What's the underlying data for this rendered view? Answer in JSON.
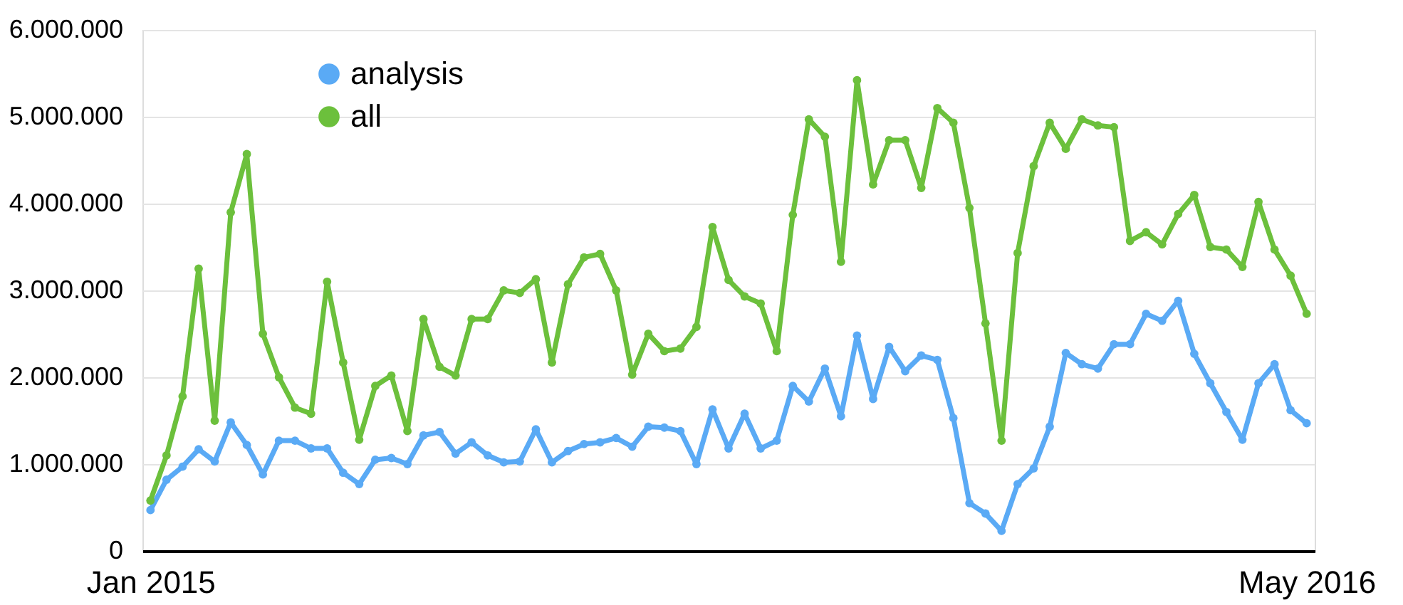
{
  "chart_data": {
    "type": "line",
    "categories": [
      "Jan 2015",
      null,
      null,
      null,
      null,
      null,
      null,
      null,
      null,
      null,
      null,
      null,
      null,
      null,
      null,
      null,
      null,
      null,
      null,
      null,
      null,
      null,
      null,
      null,
      null,
      null,
      null,
      null,
      null,
      null,
      null,
      null,
      null,
      null,
      null,
      null,
      null,
      null,
      null,
      null,
      null,
      null,
      null,
      null,
      null,
      null,
      null,
      null,
      null,
      null,
      null,
      null,
      null,
      null,
      null,
      null,
      null,
      null,
      null,
      null,
      null,
      null,
      null,
      null,
      null,
      null,
      null,
      null,
      null,
      null,
      null,
      null,
      "May 2016"
    ],
    "series": [
      {
        "name": "analysis",
        "color": "#5aaaf5",
        "values": [
          470000,
          820000,
          970000,
          1170000,
          1030000,
          1480000,
          1220000,
          880000,
          1270000,
          1270000,
          1180000,
          1180000,
          900000,
          770000,
          1050000,
          1070000,
          1000000,
          1330000,
          1370000,
          1120000,
          1250000,
          1100000,
          1020000,
          1030000,
          1400000,
          1020000,
          1150000,
          1230000,
          1250000,
          1300000,
          1200000,
          1430000,
          1420000,
          1380000,
          1000000,
          1630000,
          1180000,
          1580000,
          1180000,
          1270000,
          1900000,
          1720000,
          2100000,
          1550000,
          2480000,
          1750000,
          2350000,
          2070000,
          2250000,
          2200000,
          1530000,
          550000,
          430000,
          230000,
          770000,
          950000,
          1430000,
          2280000,
          2150000,
          2100000,
          2380000,
          2380000,
          2730000,
          2650000,
          2880000,
          2270000,
          1930000,
          1600000,
          1280000,
          1930000,
          2150000,
          1620000,
          1470000
        ]
      },
      {
        "name": "all",
        "color": "#6cc03c",
        "values": [
          580000,
          1100000,
          1780000,
          3250000,
          1500000,
          3900000,
          4570000,
          2500000,
          2000000,
          1650000,
          1580000,
          3100000,
          2170000,
          1280000,
          1900000,
          2020000,
          1380000,
          2670000,
          2120000,
          2020000,
          2670000,
          2670000,
          3000000,
          2970000,
          3130000,
          2170000,
          3070000,
          3380000,
          3420000,
          3000000,
          2030000,
          2500000,
          2300000,
          2330000,
          2580000,
          3730000,
          3120000,
          2930000,
          2850000,
          2300000,
          3870000,
          4970000,
          4770000,
          3330000,
          5420000,
          4220000,
          4730000,
          4730000,
          4180000,
          5100000,
          4930000,
          3950000,
          2620000,
          1270000,
          3430000,
          4430000,
          4930000,
          4630000,
          4970000,
          4900000,
          4880000,
          3570000,
          3670000,
          3530000,
          3880000,
          4100000,
          3500000,
          3470000,
          3270000,
          4020000,
          3470000,
          3170000,
          2730000
        ]
      }
    ],
    "ylim": [
      0,
      6000000
    ],
    "yticks": [
      {
        "value": 0,
        "label": "0"
      },
      {
        "value": 1000000,
        "label": "1.000.000"
      },
      {
        "value": 2000000,
        "label": "2.000.000"
      },
      {
        "value": 3000000,
        "label": "3.000.000"
      },
      {
        "value": 4000000,
        "label": "4.000.000"
      },
      {
        "value": 5000000,
        "label": "5.000.000"
      },
      {
        "value": 6000000,
        "label": "6.000.000"
      }
    ],
    "grid": "y",
    "legend": "top left",
    "marker": "circle",
    "line_style": "solid"
  }
}
